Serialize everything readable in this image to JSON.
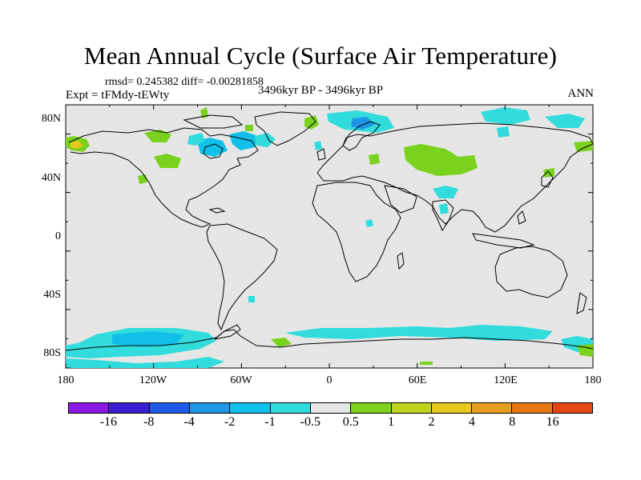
{
  "title": "Mean Annual Cycle (Surface Air Temperature)",
  "stats": "rmsd= 0.245382 diff= -0.00281858",
  "experiment": "Expt = tFMdy-tEWty",
  "period": "3496kyr BP - 3496kyr BP",
  "season": "ANN",
  "lat_labels": [
    "80N",
    "40N",
    "0",
    "40S",
    "80S"
  ],
  "lon_labels": [
    "180",
    "120W",
    "60W",
    "0",
    "60E",
    "120E",
    "180"
  ],
  "colorbar": {
    "labels": [
      "-16",
      "-8",
      "-4",
      "-2",
      "-1",
      "-0.5",
      "0.5",
      "1",
      "2",
      "4",
      "8",
      "16"
    ],
    "colors": [
      "#8c1ae6",
      "#3c1ed2",
      "#1e5ae6",
      "#1e96e6",
      "#10c0e8",
      "#32dcdc",
      "#e6e6e6",
      "#7ad21e",
      "#bed21e",
      "#e6c81e",
      "#e6a01e",
      "#e67814",
      "#e64614"
    ]
  },
  "colors": {
    "ocean_bg": "#e6e6e6",
    "coast": "#000000",
    "cyan": "#32dcdc",
    "lightblue": "#10c0e8",
    "blue": "#1e96e6",
    "green": "#7ad21e",
    "yellow": "#e6c81e"
  }
}
